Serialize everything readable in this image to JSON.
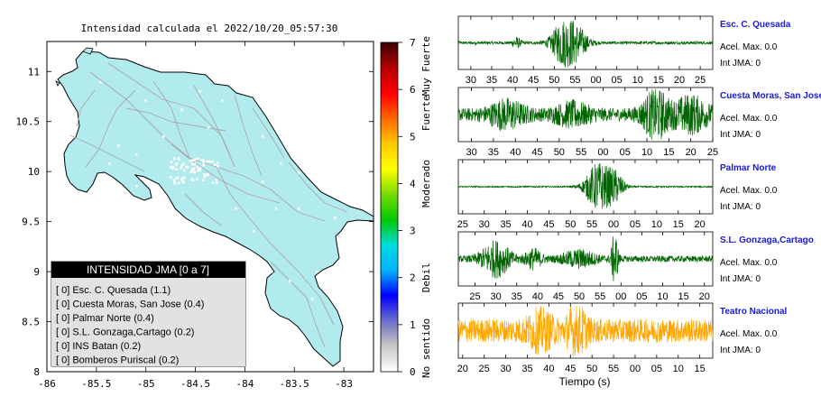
{
  "map": {
    "title": "Intensidad calculada el 2022/10/20_05:57:30",
    "x_ticks": [
      "-86",
      "-85.5",
      "-85",
      "-84.5",
      "-84",
      "-83.5",
      "-83"
    ],
    "x_values": [
      -86,
      -85.5,
      -85,
      -84.5,
      -84,
      -83.5,
      -83
    ],
    "y_ticks": [
      "11",
      "10.5",
      "10",
      "9.5",
      "9",
      "8.5",
      "8"
    ],
    "y_values": [
      11,
      10.5,
      10,
      9.5,
      9,
      8.5,
      8
    ],
    "xlim": [
      -86,
      -82.7
    ],
    "ylim": [
      8,
      11.3
    ],
    "land_color": "#b2ebee",
    "legend": {
      "title": "INTENSIDAD JMA [0 a 7]",
      "entries": [
        "[ 0]  Esc. C. Quesada (1.1)",
        "[ 0]  Cuesta Moras, San Jose (0.4)",
        "[ 0]  Palmar Norte (0.4)",
        "[ 0]  S.L. Gonzaga,Cartago (0.2)",
        "[ 0]  INS Batan (0.2)",
        "[ 0]  Bomberos Puriscal (0.2)"
      ]
    }
  },
  "colorbar": {
    "ticks": [
      "0",
      "1",
      "2",
      "3",
      "4",
      "5",
      "6",
      "7"
    ],
    "labels": [
      "No sentido",
      "Debil",
      "Moderado",
      "Fuerte",
      "Muy Fuerte"
    ],
    "colors": [
      "#ffffff",
      "#c8c8c8",
      "#6e6ec8",
      "#0000ff",
      "#00b4ff",
      "#00dcdc",
      "#00c800",
      "#78dc00",
      "#ffff00",
      "#ffc800",
      "#ff6400",
      "#ff0000",
      "#b40000",
      "#3c0000"
    ]
  },
  "chart_data": {
    "type": "line",
    "xlabel": "Tiempo (s)",
    "series": [
      {
        "name": "Esc. C. Quesada",
        "accel": "Acel. Max. 0.0",
        "int": "Int JMA: 0",
        "ticks": [
          "30",
          "35",
          "40",
          "45",
          "50",
          "55",
          "00",
          "05",
          "10",
          "15",
          "20",
          "25"
        ],
        "tick_values": [
          30,
          35,
          40,
          45,
          50,
          55,
          60,
          65,
          70,
          75,
          80,
          85
        ],
        "xlim": [
          27,
          88
        ],
        "color": "#006400",
        "events": [
          [
            41,
            1,
            0.2
          ],
          [
            52.5,
            3,
            0.95
          ],
          [
            56,
            2.5,
            0.4
          ]
        ],
        "noise": 0.06
      },
      {
        "name": "Cuesta Moras, San Jose",
        "accel": "Acel. Max. 0.0",
        "int": "Int JMA: 0",
        "ticks": [
          "30",
          "35",
          "40",
          "45",
          "50",
          "55",
          "00",
          "05",
          "10",
          "15",
          "20",
          "25"
        ],
        "tick_values": [
          30,
          35,
          40,
          45,
          50,
          55,
          60,
          65,
          70,
          75,
          80,
          85
        ],
        "xlim": [
          27,
          85
        ],
        "color": "#006400",
        "events": [
          [
            38,
            4,
            0.45
          ],
          [
            53,
            4,
            0.35
          ],
          [
            72,
            3,
            0.85
          ],
          [
            80,
            4,
            0.6
          ]
        ],
        "noise": 0.25
      },
      {
        "name": "Palmar Norte",
        "accel": "Acel. Max. 0.0",
        "int": "Int JMA: 0",
        "ticks": [
          "25",
          "30",
          "35",
          "40",
          "45",
          "50",
          "55",
          "00",
          "05",
          "10",
          "15",
          "20"
        ],
        "tick_values": [
          25,
          30,
          35,
          40,
          45,
          50,
          55,
          60,
          65,
          70,
          75,
          80
        ],
        "xlim": [
          24,
          83
        ],
        "color": "#006400",
        "events": [
          [
            56.5,
            3,
            0.95
          ],
          [
            60.5,
            2,
            0.5
          ]
        ],
        "noise": 0.03
      },
      {
        "name": "S.L. Gonzaga,Cartago",
        "accel": "Acel. Max. 0.0",
        "int": "Int JMA: 0",
        "ticks": [
          "25",
          "30",
          "35",
          "40",
          "45",
          "50",
          "55",
          "00",
          "05",
          "10",
          "15",
          "20"
        ],
        "tick_values": [
          25,
          30,
          35,
          40,
          45,
          50,
          55,
          60,
          65,
          70,
          75,
          80
        ],
        "xlim": [
          21,
          82
        ],
        "color": "#006400",
        "events": [
          [
            30,
            3.5,
            0.65
          ],
          [
            39,
            2,
            0.35
          ],
          [
            58.5,
            0.8,
            1.0
          ],
          [
            50,
            4,
            0.3
          ]
        ],
        "noise": 0.12
      },
      {
        "name": "Teatro Nacional",
        "accel": "Acel. Max. 0.0",
        "int": "Int JMA: 0",
        "ticks": [
          "20",
          "25",
          "30",
          "35",
          "40",
          "45",
          "50",
          "55",
          "00",
          "05",
          "10",
          "15"
        ],
        "tick_values": [
          20,
          25,
          30,
          35,
          40,
          45,
          50,
          55,
          60,
          65,
          70,
          75
        ],
        "xlim": [
          19,
          78
        ],
        "color": "#ffa500",
        "events": [
          [
            46.5,
            2,
            0.9
          ],
          [
            38,
            3,
            0.5
          ]
        ],
        "noise": 0.45
      }
    ]
  }
}
